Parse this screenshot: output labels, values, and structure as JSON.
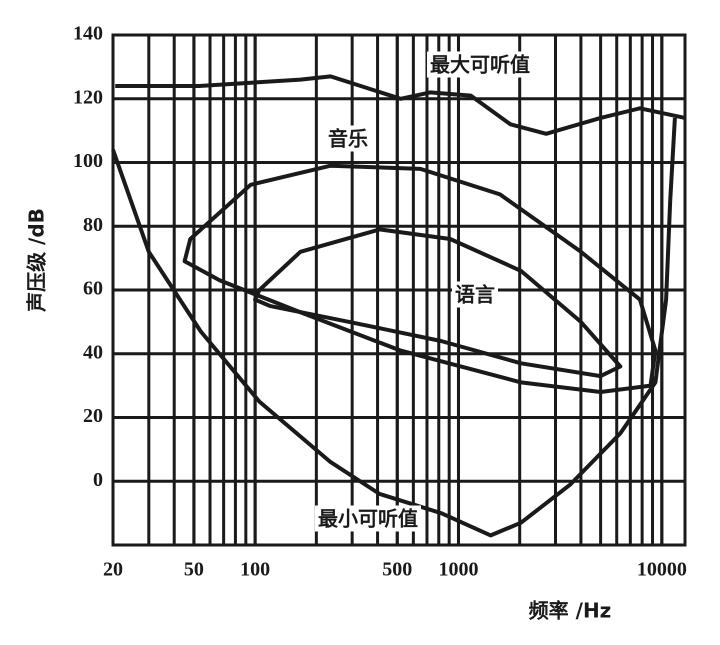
{
  "chart_data": {
    "type": "line",
    "x_label": "频率 /Hz",
    "y_label": "声压级 /dB",
    "xlim": [
      20,
      13000
    ],
    "log_x": true,
    "minor_grid": true,
    "xticks": [
      20,
      50,
      100,
      500,
      1000,
      10000
    ],
    "ylim": [
      -20,
      140
    ],
    "yticks": [
      0,
      20,
      40,
      60,
      80,
      100,
      120,
      140
    ],
    "grid": true,
    "color": "#1a1a1a",
    "series": [
      {
        "name": "最大可听值",
        "closed": false,
        "x": [
          20.5,
          53,
          167,
          235,
          520,
          725,
          1150,
          1800,
          2700,
          5000,
          7800,
          13000
        ],
        "values": [
          124,
          124,
          126,
          127,
          120,
          122,
          121,
          112,
          109,
          114,
          117,
          114
        ]
      },
      {
        "name": "音乐",
        "closed": true,
        "x": [
          48,
          95,
          235,
          650,
          1600,
          4000,
          7800,
          9300,
          8800,
          5000,
          2030,
          520,
          167,
          67,
          45
        ],
        "values": [
          76,
          93,
          99,
          98,
          90,
          72,
          57,
          41,
          30,
          28,
          31,
          41,
          53,
          63,
          69
        ]
      },
      {
        "name": "语言",
        "closed": true,
        "x": [
          105,
          167,
          410,
          910,
          2030,
          4000,
          6250,
          5000,
          2030,
          820,
          290,
          118,
          100
        ],
        "values": [
          60,
          72,
          79,
          76,
          66,
          50,
          36,
          33,
          37,
          44,
          50,
          55,
          57
        ]
      },
      {
        "name": "最小可听值",
        "closed": false,
        "x": [
          20,
          30,
          54,
          105,
          235,
          410,
          820,
          1440,
          2030,
          3550,
          6250,
          9300,
          10500,
          11000,
          11600
        ],
        "values": [
          104,
          72,
          47,
          25,
          6,
          -4,
          -10,
          -17,
          -13,
          -1,
          15,
          31,
          57,
          88,
          114
        ]
      }
    ]
  }
}
